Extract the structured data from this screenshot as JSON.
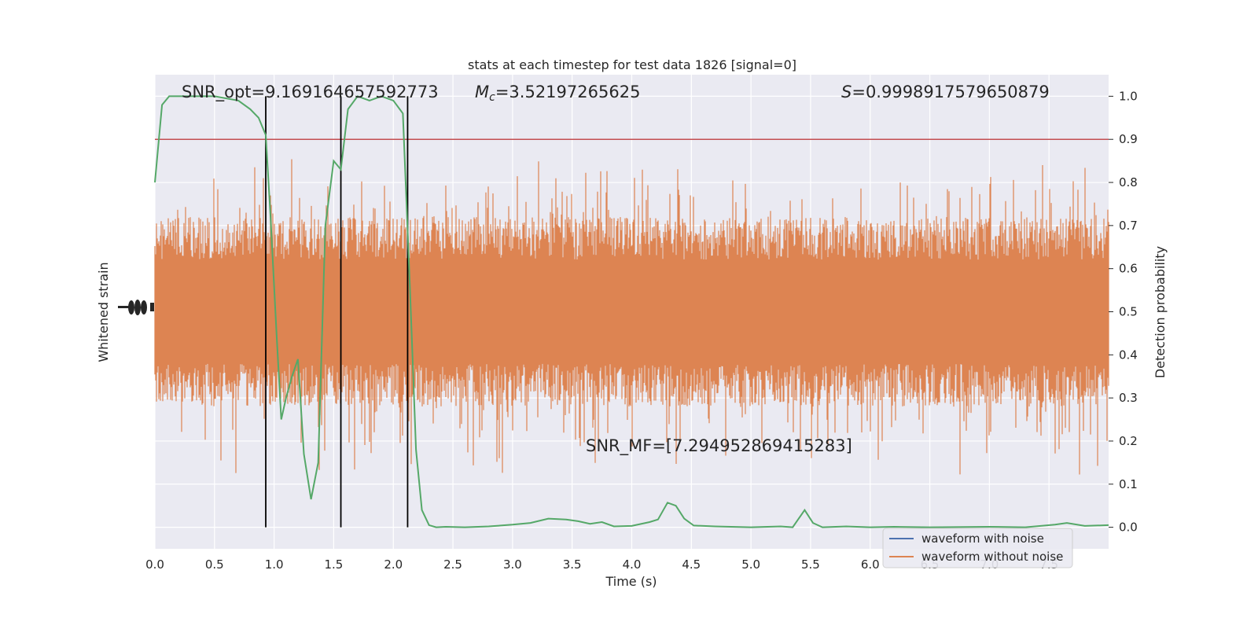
{
  "chart_data": {
    "type": "line",
    "title": "stats at each timestep for test data 1826 [signal=0]",
    "xlabel": "Time (s)",
    "ylabel_left": "Whitened strain",
    "ylabel_right": "Detection probability",
    "xlim": [
      0.0,
      8.0
    ],
    "ylim_right": [
      -0.05,
      1.05
    ],
    "x_ticks": [
      "0.0",
      "0.5",
      "1.0",
      "1.5",
      "2.0",
      "2.5",
      "3.0",
      "3.5",
      "4.0",
      "4.5",
      "5.0",
      "5.5",
      "6.0",
      "6.5",
      "7.0",
      "7.5"
    ],
    "y_ticks_right": [
      "0.0",
      "0.1",
      "0.2",
      "0.3",
      "0.4",
      "0.5",
      "0.6",
      "0.7",
      "0.8",
      "0.9",
      "1.0"
    ],
    "annotations": {
      "snr_opt": "SNR_opt=9.169164657592773",
      "mc_symbol": "M",
      "mc_sub": "c",
      "mc_value": "=3.52197265625",
      "s_symbol": "S",
      "s_value": "=0.9998917579650879",
      "snr_mf": "SNR_MF=[7.294952869415283]"
    },
    "threshold": 0.9,
    "vertical_lines_x": [
      0.93,
      1.56,
      2.12
    ],
    "detection_probability": {
      "x": [
        0.0,
        0.06,
        0.12,
        0.2,
        0.3,
        0.5,
        0.7,
        0.8,
        0.87,
        0.93,
        0.97,
        1.02,
        1.06,
        1.1,
        1.15,
        1.2,
        1.25,
        1.31,
        1.37,
        1.43,
        1.5,
        1.56,
        1.62,
        1.7,
        1.8,
        1.9,
        2.0,
        2.08,
        2.14,
        2.19,
        2.24,
        2.3,
        2.36,
        2.44,
        2.6,
        2.8,
        3.0,
        3.15,
        3.3,
        3.45,
        3.55,
        3.65,
        3.75,
        3.85,
        4.0,
        4.15,
        4.22,
        4.3,
        4.37,
        4.44,
        4.52,
        4.7,
        5.0,
        5.25,
        5.35,
        5.45,
        5.52,
        5.6,
        5.8,
        6.0,
        6.2,
        6.5,
        7.0,
        7.3,
        7.55,
        7.65,
        7.8,
        8.0
      ],
      "y": [
        0.8,
        0.98,
        1.0,
        1.0,
        1.0,
        1.0,
        0.99,
        0.97,
        0.95,
        0.91,
        0.72,
        0.45,
        0.25,
        0.3,
        0.35,
        0.39,
        0.17,
        0.065,
        0.15,
        0.7,
        0.85,
        0.83,
        0.97,
        1.0,
        0.99,
        1.0,
        0.99,
        0.96,
        0.55,
        0.18,
        0.04,
        0.005,
        0.0,
        0.001,
        0.0,
        0.002,
        0.006,
        0.01,
        0.02,
        0.018,
        0.014,
        0.008,
        0.012,
        0.002,
        0.003,
        0.012,
        0.018,
        0.057,
        0.05,
        0.02,
        0.004,
        0.002,
        0.0,
        0.002,
        0.0,
        0.04,
        0.01,
        0.0,
        0.002,
        0.0,
        0.001,
        0.0,
        0.001,
        0.0,
        0.006,
        0.01,
        0.003,
        0.005
      ]
    },
    "legend": {
      "location": "lower right",
      "items": [
        {
          "label": "waveform with noise",
          "color": "#4c72b0"
        },
        {
          "label": "waveform without noise",
          "color": "#dd8452"
        }
      ]
    },
    "colors": {
      "background": "#eaeaf2",
      "grid": "#ffffff",
      "waveform_fill": "#dd8452",
      "detection_probability": "#55a868",
      "threshold": "#c44e52",
      "vertical_lines": "#000000"
    }
  }
}
